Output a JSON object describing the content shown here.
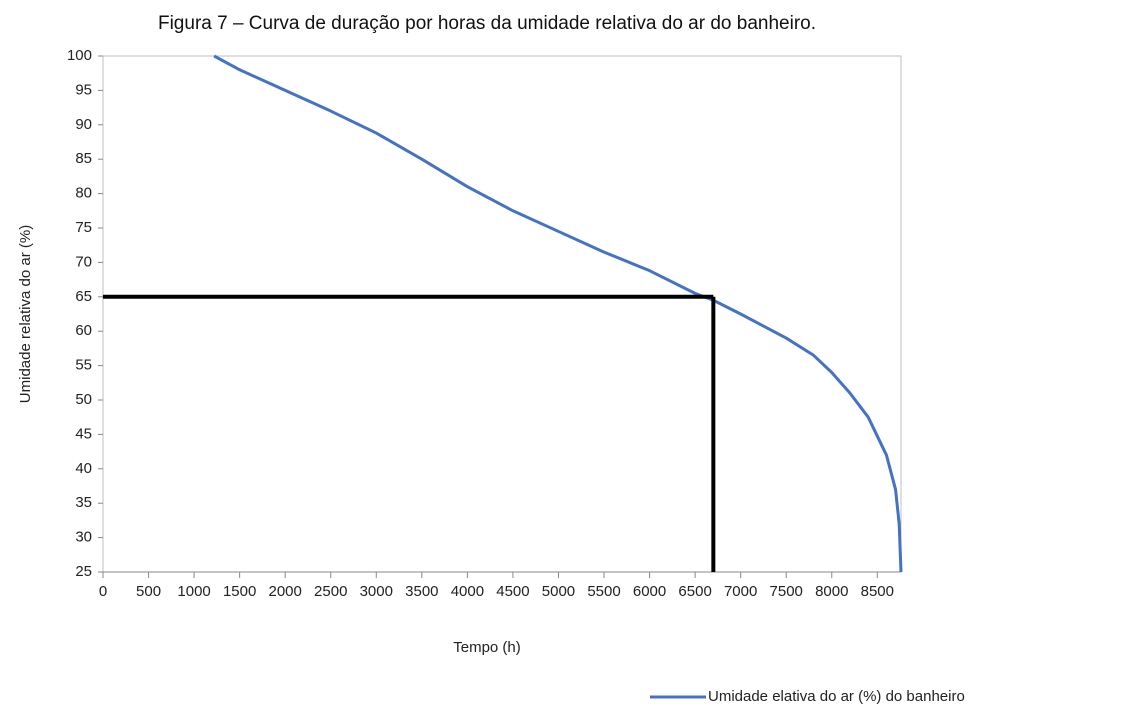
{
  "chart_data": {
    "type": "line",
    "title": "Figura 7 – Curva de duração por horas da umidade relativa do ar do banheiro.",
    "x_label": "Tempo (h)",
    "y_label": "Umidade relativa do ar (%)",
    "x": [
      1220,
      1500,
      2000,
      2500,
      3000,
      3500,
      3750,
      4000,
      4500,
      5000,
      5500,
      6000,
      6500,
      6700,
      7000,
      7500,
      7800,
      8000,
      8200,
      8400,
      8600,
      8700,
      8740,
      8760
    ],
    "series": [
      {
        "name": "Umidade elativa do ar (%) do banheiro",
        "color": "#4472c4",
        "values": [
          100,
          98,
          95,
          92,
          88.8,
          85,
          83,
          81,
          77.5,
          74.5,
          71.5,
          68.8,
          65.5,
          64.5,
          62.5,
          59,
          56.5,
          54,
          51,
          47.5,
          42,
          37,
          32,
          25
        ]
      }
    ],
    "reference": {
      "x": 6700,
      "y": 65,
      "color": "#000000"
    },
    "xlim": [
      0,
      8760
    ],
    "xticks": [
      0,
      500,
      1000,
      1500,
      2000,
      2500,
      3000,
      3500,
      4000,
      4500,
      5000,
      5500,
      6000,
      6500,
      7000,
      7500,
      8000,
      8500
    ],
    "ylim": [
      25,
      100
    ],
    "yticks": [
      25,
      30,
      35,
      40,
      45,
      50,
      55,
      60,
      65,
      70,
      75,
      80,
      85,
      90,
      95,
      100
    ],
    "grid": false,
    "legend": "bottom-right"
  }
}
